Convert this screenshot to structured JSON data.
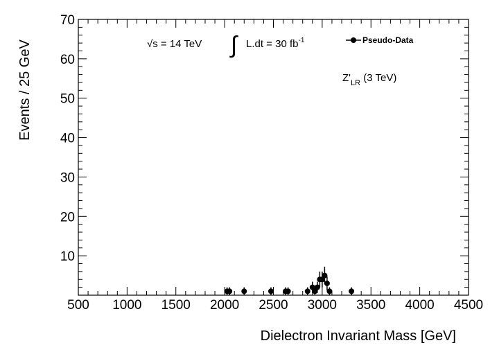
{
  "chart_data": {
    "type": "scatter",
    "xlabel": "Dielectron Invariant Mass [GeV]",
    "ylabel": "Events / 25 GeV",
    "xlim": [
      500,
      4500
    ],
    "ylim": [
      0,
      70
    ],
    "x_ticks": [
      500,
      1000,
      1500,
      2000,
      2500,
      3000,
      3500,
      4000,
      4500
    ],
    "y_ticks": [
      10,
      20,
      30,
      40,
      50,
      60,
      70
    ],
    "grid": false,
    "legend_position": "top-right",
    "series": [
      {
        "name": "Pseudo-Data",
        "marker": "circle",
        "error_bars": true,
        "points": [
          {
            "x": 2025,
            "y": 1
          },
          {
            "x": 2050,
            "y": 1
          },
          {
            "x": 2200,
            "y": 1
          },
          {
            "x": 2475,
            "y": 1
          },
          {
            "x": 2625,
            "y": 1
          },
          {
            "x": 2650,
            "y": 1
          },
          {
            "x": 2850,
            "y": 1
          },
          {
            "x": 2900,
            "y": 2
          },
          {
            "x": 2925,
            "y": 1
          },
          {
            "x": 2950,
            "y": 2
          },
          {
            "x": 2975,
            "y": 4
          },
          {
            "x": 3000,
            "y": 4
          },
          {
            "x": 3025,
            "y": 5
          },
          {
            "x": 3050,
            "y": 3
          },
          {
            "x": 3075,
            "y": 1
          },
          {
            "x": 3300,
            "y": 1
          }
        ]
      }
    ],
    "annotations": {
      "sqrt_s": "√s = 14 TeV",
      "lumi_prefix": "L.dt = 30 fb",
      "lumi_sup": "-1",
      "signal_main": "Z'",
      "signal_sub": "LR",
      "signal_rest": " (3 TeV)"
    }
  },
  "colors": {
    "axis": "#000000",
    "marker": "#000000",
    "background": "#ffffff"
  }
}
